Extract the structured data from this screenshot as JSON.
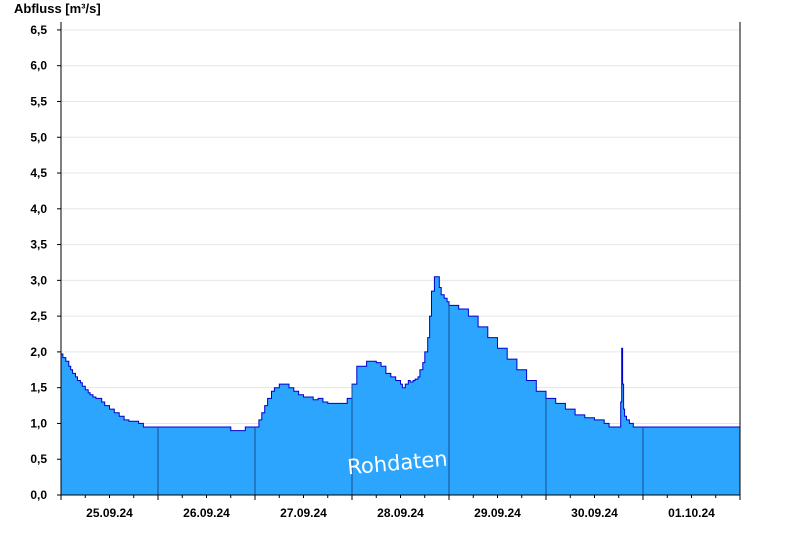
{
  "chart_data": {
    "type": "area",
    "ylabel": "Abfluss [m³/s]",
    "watermark": "Rohdaten",
    "ylim": [
      0,
      6.6
    ],
    "xlim_days": [
      0,
      7
    ],
    "yticks": [
      {
        "v": 0,
        "label": "0,0"
      },
      {
        "v": 0.5,
        "label": "0,5"
      },
      {
        "v": 1.0,
        "label": "1,0"
      },
      {
        "v": 1.5,
        "label": "1,5"
      },
      {
        "v": 2.0,
        "label": "2,0"
      },
      {
        "v": 2.5,
        "label": "2,5"
      },
      {
        "v": 3.0,
        "label": "3,0"
      },
      {
        "v": 3.5,
        "label": "3,5"
      },
      {
        "v": 4.0,
        "label": "4,0"
      },
      {
        "v": 4.5,
        "label": "4,5"
      },
      {
        "v": 5.0,
        "label": "5,0"
      },
      {
        "v": 5.5,
        "label": "5,5"
      },
      {
        "v": 6.0,
        "label": "6,0"
      },
      {
        "v": 6.5,
        "label": "6,5"
      }
    ],
    "xticks": [
      {
        "day": 0.5,
        "label": "25.09.24"
      },
      {
        "day": 1.5,
        "label": "26.09.24"
      },
      {
        "day": 2.5,
        "label": "27.09.24"
      },
      {
        "day": 3.5,
        "label": "28.09.24"
      },
      {
        "day": 4.5,
        "label": "29.09.24"
      },
      {
        "day": 5.5,
        "label": "30.09.24"
      },
      {
        "day": 6.5,
        "label": "01.10.24"
      }
    ],
    "day_separators": [
      1,
      2,
      3,
      4,
      5,
      6
    ],
    "grid": true,
    "colors": {
      "fill": "#2ba5fd",
      "line": "#0000cc",
      "grid": "#e6e6e6",
      "separator": "#1a4a8a"
    },
    "series": [
      {
        "x_days": [
          0.0,
          0.02,
          0.05,
          0.08,
          0.1,
          0.12,
          0.15,
          0.17,
          0.2,
          0.22,
          0.25,
          0.28,
          0.3,
          0.33,
          0.36,
          0.38,
          0.42,
          0.45,
          0.5,
          0.55,
          0.6,
          0.65,
          0.7,
          0.75,
          0.8,
          0.85,
          0.9,
          0.95,
          1.0,
          1.25,
          1.5,
          1.7,
          1.75,
          1.85,
          1.9,
          2.0,
          2.04,
          2.07,
          2.1,
          2.13,
          2.17,
          2.2,
          2.25,
          2.3,
          2.35,
          2.4,
          2.45,
          2.5,
          2.6,
          2.65,
          2.7,
          2.75,
          2.85,
          2.95,
          3.0,
          3.05,
          3.15,
          3.2,
          3.25,
          3.3,
          3.35,
          3.4,
          3.45,
          3.5,
          3.52,
          3.55,
          3.58,
          3.6,
          3.63,
          3.65,
          3.68,
          3.7,
          3.73,
          3.75,
          3.78,
          3.8,
          3.82,
          3.85,
          3.88,
          3.9,
          3.92,
          3.95,
          3.98,
          4.0,
          4.1,
          4.2,
          4.3,
          4.4,
          4.5,
          4.6,
          4.7,
          4.8,
          4.9,
          5.0,
          5.1,
          5.2,
          5.3,
          5.4,
          5.5,
          5.6,
          5.65,
          5.7,
          5.75,
          5.77,
          5.78,
          5.79,
          5.8,
          5.81,
          5.83,
          5.86,
          5.9,
          6.0,
          6.5,
          7.0
        ],
        "y": [
          1.97,
          1.92,
          1.87,
          1.8,
          1.75,
          1.7,
          1.65,
          1.6,
          1.57,
          1.52,
          1.47,
          1.43,
          1.4,
          1.37,
          1.35,
          1.35,
          1.3,
          1.25,
          1.2,
          1.15,
          1.1,
          1.05,
          1.03,
          1.03,
          1.0,
          0.95,
          0.95,
          0.95,
          0.95,
          0.95,
          0.95,
          0.95,
          0.9,
          0.9,
          0.95,
          0.95,
          1.05,
          1.15,
          1.25,
          1.35,
          1.45,
          1.5,
          1.55,
          1.55,
          1.5,
          1.45,
          1.4,
          1.37,
          1.33,
          1.35,
          1.3,
          1.28,
          1.28,
          1.35,
          1.55,
          1.8,
          1.87,
          1.87,
          1.85,
          1.8,
          1.7,
          1.65,
          1.6,
          1.55,
          1.5,
          1.55,
          1.6,
          1.58,
          1.6,
          1.62,
          1.65,
          1.75,
          1.85,
          2.0,
          2.2,
          2.5,
          2.85,
          3.05,
          3.05,
          2.9,
          2.8,
          2.75,
          2.7,
          2.65,
          2.6,
          2.5,
          2.35,
          2.2,
          2.05,
          1.9,
          1.75,
          1.6,
          1.45,
          1.35,
          1.28,
          1.2,
          1.12,
          1.08,
          1.05,
          1.0,
          0.95,
          0.95,
          0.95,
          1.3,
          2.05,
          1.55,
          1.2,
          1.1,
          1.05,
          1.0,
          0.95,
          0.95,
          0.95,
          0.95
        ]
      }
    ]
  }
}
